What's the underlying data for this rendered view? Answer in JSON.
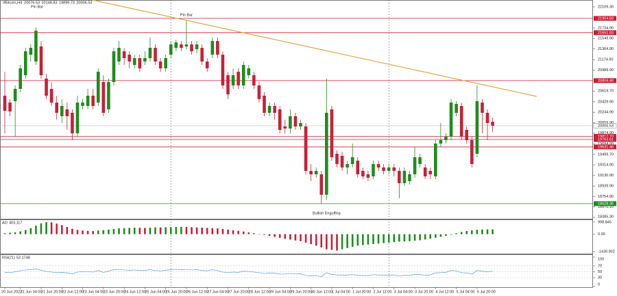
{
  "chart_data": [
    {
      "type": "candlestick",
      "title": "#Bitcoin,H4",
      "subtitle": "Pin Bar",
      "categories": [
        "20 Jun 2022",
        null,
        null,
        "21 Jun 04:00",
        null,
        null,
        null,
        "21 Jun 20:00",
        null,
        null,
        null,
        "22 Jun 12:00",
        null,
        null,
        null,
        "23 Jun 04:00",
        null,
        null,
        null,
        "23 Jun 20:00",
        null,
        null,
        null,
        "24 Jun 12:00",
        null,
        null,
        null,
        "25 Jun 04:00",
        null,
        null,
        null,
        "25 Jun 20:00",
        null,
        null,
        null,
        "26 Jun 12:00",
        null,
        null,
        null,
        "27 Jun 04:00",
        null,
        null,
        null,
        "27 Jun 20:00",
        null,
        null,
        null,
        "28 Jun 12:00",
        null,
        null,
        null,
        "29 Jun 04:00",
        null,
        null,
        null,
        "29 Jun 20:00",
        null,
        null,
        null,
        "30 Jun 12:00",
        null,
        null,
        null,
        "1 Jul 04:00",
        null,
        null,
        null,
        "1 Jul 20:00",
        null,
        null,
        null,
        "2 Jul 12:00",
        null,
        null,
        null,
        "3 Jul 04:00",
        null,
        null,
        null,
        "3 Jul 20:00",
        null,
        null,
        null,
        "4 Jul 12:00",
        null,
        null,
        null,
        "5 Jul 04:00",
        null,
        null,
        null,
        "5 Jul 20:00",
        null,
        null,
        null
      ],
      "open": [
        20537,
        20416,
        20441,
        20658,
        20900,
        21263,
        21142,
        21408,
        20840,
        20658,
        20416,
        20175,
        20296,
        20235,
        19872,
        20356,
        20356,
        20537,
        20416,
        20779,
        20296,
        20779,
        21142,
        21323,
        21263,
        21081,
        21202,
        21142,
        21202,
        21384,
        21142,
        21021,
        21263,
        21384,
        21444,
        21408,
        21444,
        21360,
        21384,
        21142,
        21263,
        21505,
        21263,
        20900,
        20719,
        20961,
        20719,
        20900,
        20900,
        20719,
        20537,
        20235,
        20356,
        20296,
        19993,
        19957,
        20175,
        19993,
        19993,
        19208,
        19147,
        19147,
        18785,
        20296,
        19510,
        19474,
        19268,
        19329,
        19389,
        19208,
        19147,
        19111,
        19329,
        19268,
        19208,
        19268,
        19208,
        18990,
        19027,
        19147,
        19329,
        19268,
        19208,
        19111,
        19691,
        19752,
        19812,
        20235,
        20356,
        19933,
        19752,
        19510,
        20416,
        20235,
        20076.53
      ],
      "high": [
        20961,
        20477,
        20719,
        21081,
        21384,
        21444,
        21746,
        21505,
        20924,
        20779,
        20537,
        20477,
        20416,
        20296,
        20537,
        20477,
        20658,
        20658,
        21021,
        20900,
        20840,
        21384,
        21505,
        21384,
        21323,
        21263,
        21263,
        21323,
        21565,
        21444,
        21202,
        21263,
        21505,
        21529,
        21505,
        21867,
        21505,
        21505,
        21444,
        21202,
        21565,
        21565,
        21323,
        20961,
        21021,
        21021,
        21142,
        21081,
        20961,
        20779,
        20598,
        20416,
        20416,
        20356,
        20114,
        20296,
        20235,
        20114,
        20054,
        19329,
        19268,
        19208,
        20840,
        20356,
        19570,
        19546,
        19389,
        19691,
        19450,
        19268,
        19208,
        19389,
        19389,
        19329,
        19329,
        19329,
        19268,
        19268,
        19208,
        19631,
        19510,
        19329,
        19268,
        19752,
        20054,
        19872,
        20477,
        20441,
        20416,
        19993,
        19812,
        20719,
        20477,
        20296,
        20148.83
      ],
      "low": [
        19872,
        20175,
        19812,
        20598,
        20840,
        21142,
        21081,
        20840,
        20477,
        20356,
        20114,
        20054,
        19933,
        19752,
        19812,
        20296,
        20296,
        20296,
        20356,
        20175,
        20235,
        20719,
        21081,
        21081,
        21021,
        21021,
        20961,
        21081,
        21142,
        21081,
        20961,
        20961,
        21202,
        21323,
        21323,
        21360,
        21263,
        21287,
        21081,
        20961,
        21202,
        21202,
        20658,
        20477,
        20658,
        20658,
        20658,
        20840,
        20658,
        20416,
        20175,
        20175,
        20114,
        19872,
        19872,
        19872,
        19933,
        19933,
        19147,
        19027,
        19087,
        18627,
        18700,
        19389,
        19268,
        19208,
        19147,
        19268,
        19087,
        19063,
        19027,
        19063,
        19208,
        19147,
        19147,
        19111,
        18724,
        18942,
        18966,
        19087,
        19268,
        19063,
        19063,
        19063,
        19631,
        19691,
        19752,
        20175,
        19752,
        19691,
        19268,
        19450,
        19872,
        19752,
        19899.73
      ],
      "close": [
        20271,
        20259,
        20658,
        21021,
        21323,
        21384,
        21686,
        20900,
        20537,
        20416,
        20235,
        20356,
        20175,
        19872,
        20416,
        20416,
        20537,
        20356,
        20961,
        20235,
        20779,
        21323,
        21384,
        21202,
        21142,
        21202,
        21021,
        21202,
        21384,
        21142,
        21021,
        21202,
        21444,
        21480,
        21384,
        21444,
        21323,
        21444,
        21142,
        21021,
        21505,
        21263,
        20719,
        20562,
        20900,
        20719,
        21081,
        21021,
        20719,
        20477,
        20235,
        20356,
        20235,
        19933,
        19957,
        20175,
        19993,
        20054,
        19208,
        19147,
        19208,
        18785,
        20235,
        19450,
        19329,
        19268,
        19329,
        19450,
        19147,
        19111,
        19087,
        19329,
        19268,
        19208,
        19268,
        19208,
        18990,
        19208,
        19147,
        19450,
        19450,
        19111,
        19147,
        19691,
        19752,
        19812,
        20416,
        20392,
        19812,
        19752,
        19329,
        20441,
        20235,
        20054,
        20006.53
      ],
      "up_color": "#1e8c1e",
      "down_color": "#c91f37",
      "ylim": [
        18361,
        22230
      ],
      "yticks": [
        {
          "value": 22109.3,
          "label": "22109.30"
        },
        {
          "value": 21734.9,
          "label": "21734.90"
        },
        {
          "value": 21549.9,
          "label": "21549.90"
        },
        {
          "value": 21364.9,
          "label": "21364.90"
        },
        {
          "value": 21174.9,
          "label": "21174.90"
        },
        {
          "value": 20989.9,
          "label": "20989.90"
        },
        {
          "value": 20619.7,
          "label": "20619.70"
        },
        {
          "value": 20429.9,
          "label": "20429.90"
        },
        {
          "value": 20244.9,
          "label": "20244.90"
        },
        {
          "value": 20059.9,
          "label": "20059.90"
        },
        {
          "value": 19874.9,
          "label": "19874.90"
        },
        {
          "value": 19684.9,
          "label": "19684.90"
        },
        {
          "value": 19499.7,
          "label": "19499.70"
        },
        {
          "value": 19314.9,
          "label": "19314.90"
        },
        {
          "value": 19130.9,
          "label": "19130.90"
        },
        {
          "value": 18939.9,
          "label": "18939.90"
        },
        {
          "value": 18754.9,
          "label": "18754.90"
        },
        {
          "value": 18570.1,
          "label": "18570.10"
        },
        {
          "value": 18385.3,
          "label": "18385.30"
        }
      ],
      "levels": [
        {
          "value": 21904.83,
          "color": "#c91f37"
        },
        {
          "value": 21651.83,
          "color": "#c91f37"
        },
        {
          "value": 20804.4,
          "label": "20804.40",
          "color": "#c91f37"
        },
        {
          "value": 19817.7,
          "label": "19817.70",
          "color": "#c91f37"
        },
        {
          "value": 19763.61,
          "color": "#c91f37"
        },
        {
          "value": 19631.48,
          "color": "#c91f37"
        },
        {
          "value": 18628.36,
          "color": "#1e8c1e"
        }
      ],
      "annotations": [
        {
          "text": "Pin Bar",
          "index": 35,
          "position": "above"
        },
        {
          "text": "Bullish Engulfing",
          "index": 62,
          "position": "below"
        }
      ],
      "trendline": {
        "x": [
          16.9,
          102.5
        ],
        "y": [
          22230,
          20525
        ],
        "color": "#e8a33d"
      },
      "vlines": [
        32,
        74
      ]
    },
    {
      "type": "bar",
      "title": "AO",
      "values": [
        80,
        120,
        150,
        230,
        350,
        500,
        700,
        900,
        1000,
        980,
        880,
        750,
        600,
        450,
        350,
        300,
        280,
        260,
        300,
        330,
        380,
        430,
        480,
        500,
        520,
        540,
        530,
        520,
        540,
        560,
        560,
        570,
        580,
        600,
        610,
        600,
        580,
        560,
        540,
        520,
        500,
        480,
        430,
        380,
        330,
        280,
        220,
        150,
        80,
        10,
        -60,
        -140,
        -220,
        -300,
        -380,
        -450,
        -520,
        -580,
        -700,
        -820,
        -950,
        -1100,
        -1250,
        -1300,
        -1350,
        -1250,
        -1150,
        -1050,
        -950,
        -900,
        -860,
        -820,
        -780,
        -740,
        -700,
        -660,
        -620,
        -600,
        -580,
        -540,
        -500,
        -440,
        -370,
        -300,
        -220,
        -140,
        -40,
        80,
        180,
        260,
        320,
        360,
        390,
        400,
        403.117
      ],
      "up_color": "#1e8c1e",
      "down_color": "#c91f37",
      "ylim": [
        -1610,
        1165
      ],
      "yticks": [
        998.845,
        {
          "value": 0,
          "label": "0.00"
        },
        -1439.902
      ]
    },
    {
      "type": "line",
      "title": "RSI(21)",
      "values": [
        48,
        47,
        50,
        53,
        56,
        57,
        60,
        55,
        51,
        49,
        47,
        48,
        46,
        43,
        49,
        50,
        51,
        49,
        54,
        48,
        52,
        57,
        58,
        56,
        55,
        56,
        54,
        55,
        57,
        54,
        53,
        55,
        57,
        58,
        57,
        58,
        56,
        57,
        54,
        53,
        57,
        54,
        49,
        47,
        49,
        48,
        52,
        51,
        49,
        47,
        44,
        46,
        45,
        42,
        42,
        44,
        42,
        43,
        37,
        36,
        37,
        33,
        47,
        41,
        39,
        38,
        39,
        40,
        38,
        37,
        37,
        40,
        39,
        38,
        39,
        38,
        35,
        38,
        37,
        41,
        41,
        38,
        39,
        46,
        47,
        48,
        54,
        53,
        47,
        46,
        42,
        54,
        52,
        50,
        52.1748
      ],
      "color": "#5b9bd5",
      "ylim": [
        0,
        100
      ],
      "yticks": [
        100,
        70,
        50,
        30,
        0
      ]
    }
  ]
}
